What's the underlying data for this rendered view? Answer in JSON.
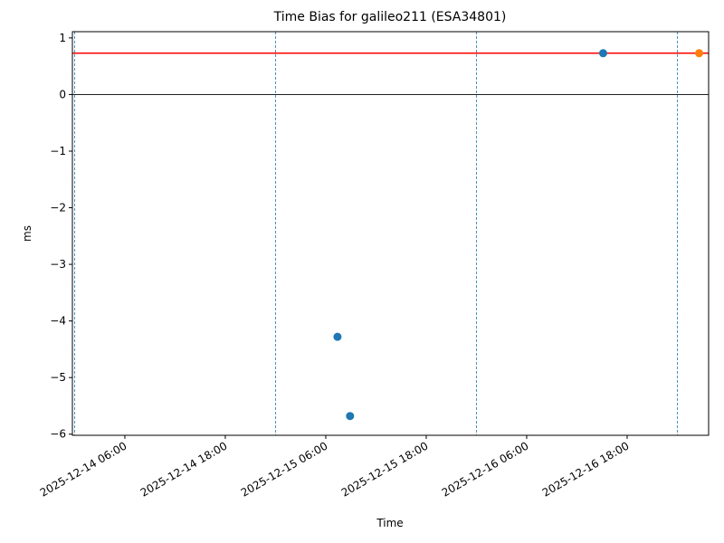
{
  "chart_data": {
    "type": "scatter",
    "title": "Time Bias for galileo211 (ESA34801)",
    "x_label": "Time",
    "y_label": "ms",
    "series": [
      {
        "color": "#1f77b4",
        "x": [
          "2025-12-15 07:24",
          "2025-12-15 08:54",
          "2025-12-16 15:08"
        ],
        "values": [
          -4.28,
          -5.68,
          0.73
        ]
      },
      {
        "color": "#ff7f0e",
        "x": [
          "2025-12-17 02:36"
        ],
        "values": [
          0.73
        ]
      }
    ],
    "xlim": [
      "2025-12-13 23:44",
      "2025-12-17 03:44"
    ],
    "xticks": [
      "2025-12-14 06:00",
      "2025-12-14 18:00",
      "2025-12-15 06:00",
      "2025-12-15 18:00",
      "2025-12-16 06:00",
      "2025-12-16 18:00"
    ],
    "ylim": [
      -6.02,
      1.11
    ],
    "yticks": [
      1,
      0,
      {
        "value": -1,
        "label": "−1"
      },
      {
        "value": -2,
        "label": "−2"
      },
      {
        "value": -3,
        "label": "−3"
      },
      {
        "value": -4,
        "label": "−4"
      },
      {
        "value": -5,
        "label": "−5"
      },
      {
        "value": -6,
        "label": "−6"
      }
    ],
    "hlines": [
      {
        "y": 0.73,
        "color": "#ff0000"
      },
      {
        "y": 0,
        "color": "#000000"
      }
    ],
    "vlines": {
      "color": "#1f77b4",
      "x": [
        "2025-12-14 00:00",
        "2025-12-15 00:00",
        "2025-12-16 00:00",
        "2025-12-17 00:00"
      ]
    }
  }
}
